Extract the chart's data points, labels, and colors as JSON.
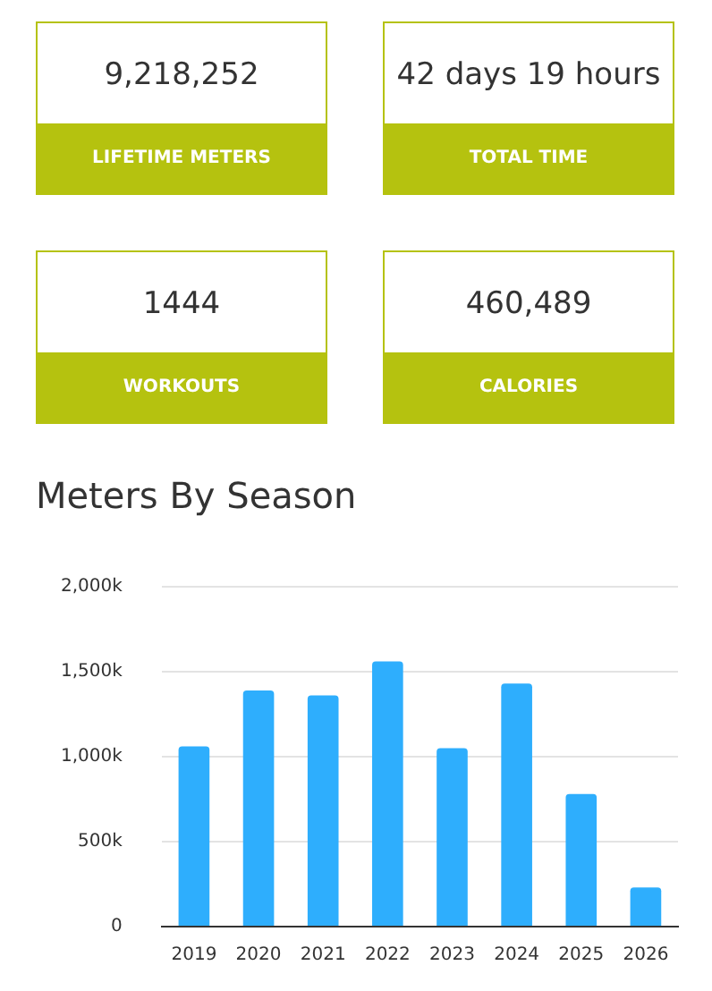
{
  "chart_data": [
    {
      "type": "other",
      "color": "#b5c20f",
      "annotations": [
        "9,218,252",
        "LIFETIME METERS",
        "42 days 19 hours",
        "TOTAL TIME",
        "1444",
        "WORKOUTS",
        "460,489",
        "CALORIES"
      ]
    },
    {
      "type": "bar",
      "title": "Meters By Season",
      "categories": [
        "2019",
        "2020",
        "2021",
        "2022",
        "2023",
        "2024",
        "2025",
        "2026"
      ],
      "values": [
        1060,
        1390,
        1360,
        1560,
        1050,
        1430,
        780,
        230
      ],
      "color": "#2eaefd",
      "ylim": [
        0,
        2000
      ],
      "yticks": [
        {
          "value": 0,
          "label": "0"
        },
        {
          "value": 500,
          "label": "500k"
        },
        {
          "value": 1000,
          "label": "1,000k"
        },
        {
          "value": 1500,
          "label": "1,500k"
        },
        {
          "value": 2000,
          "label": "2,000k"
        }
      ],
      "grid": "y",
      "legend": false
    }
  ]
}
